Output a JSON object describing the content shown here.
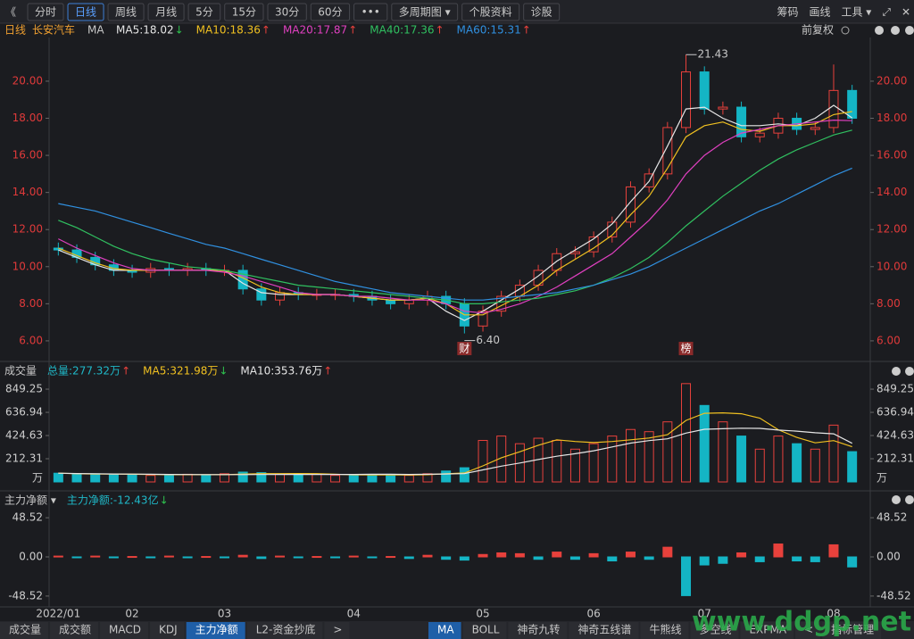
{
  "toolbar": {
    "left": [
      "《",
      "分时",
      "日线",
      "周线",
      "月线",
      "5分",
      "15分",
      "30分",
      "60分",
      "•••",
      "多周期图 ▾",
      "个股资料",
      "诊股"
    ],
    "active": 2,
    "right": [
      "筹码",
      "画线",
      "工具 ▾",
      "⤢",
      "✕"
    ]
  },
  "info": {
    "period": "日线",
    "stock": "长安汽车",
    "indicator": "MA",
    "adjust": "前复权"
  },
  "chart_data": [
    {
      "type": "candlestick",
      "categories": [
        "2022/01",
        null,
        null,
        null,
        "02",
        null,
        null,
        null,
        null,
        "03",
        null,
        null,
        null,
        null,
        null,
        null,
        "04",
        null,
        null,
        null,
        null,
        null,
        null,
        "05",
        null,
        null,
        null,
        null,
        null,
        "06",
        null,
        null,
        null,
        null,
        null,
        "07",
        null,
        null,
        null,
        null,
        null,
        null,
        "08",
        null
      ],
      "open": [
        11.0,
        10.9,
        10.5,
        10.1,
        9.8,
        9.7,
        9.9,
        9.8,
        9.9,
        9.8,
        9.8,
        8.8,
        8.2,
        8.6,
        8.5,
        8.5,
        8.5,
        8.4,
        8.2,
        8.0,
        8.2,
        8.4,
        8.0,
        6.8,
        7.6,
        8.4,
        9.0,
        9.8,
        10.7,
        10.8,
        11.6,
        12.4,
        14.3,
        15.0,
        17.5,
        20.5,
        18.5,
        18.6,
        17.0,
        17.2,
        18.0,
        17.4,
        17.5,
        19.5
      ],
      "close": [
        10.9,
        10.5,
        10.1,
        9.8,
        9.7,
        9.9,
        9.8,
        9.9,
        9.8,
        9.8,
        8.8,
        8.2,
        8.6,
        8.5,
        8.5,
        8.5,
        8.4,
        8.2,
        8.0,
        8.2,
        8.4,
        8.0,
        6.8,
        7.6,
        8.4,
        9.0,
        9.8,
        10.7,
        10.8,
        11.6,
        12.4,
        14.3,
        15.0,
        17.5,
        20.5,
        18.5,
        18.6,
        17.0,
        17.2,
        18.0,
        17.4,
        17.5,
        19.5,
        18.0
      ],
      "high": [
        11.3,
        11.2,
        10.8,
        10.4,
        10.1,
        10.2,
        10.2,
        10.2,
        10.2,
        10.1,
        10.1,
        9.1,
        8.9,
        8.9,
        8.8,
        8.8,
        8.8,
        8.7,
        8.5,
        8.5,
        8.7,
        8.7,
        8.3,
        7.9,
        8.7,
        9.3,
        10.1,
        11.0,
        11.1,
        11.9,
        12.7,
        14.6,
        15.3,
        17.8,
        21.43,
        20.8,
        18.9,
        18.9,
        17.5,
        18.3,
        18.3,
        17.8,
        20.9,
        19.8
      ],
      "low": [
        10.6,
        10.2,
        9.8,
        9.5,
        9.4,
        9.4,
        9.5,
        9.5,
        9.5,
        9.5,
        8.5,
        7.9,
        7.9,
        8.2,
        8.2,
        8.2,
        8.1,
        7.9,
        7.7,
        7.7,
        7.9,
        7.7,
        6.4,
        6.5,
        7.3,
        8.1,
        8.7,
        9.5,
        10.4,
        10.5,
        11.3,
        12.1,
        14.0,
        14.7,
        17.2,
        18.2,
        18.2,
        16.7,
        16.7,
        16.9,
        17.1,
        17.1,
        17.2,
        17.7
      ],
      "up_color": "#e8413c",
      "down_color": "#14b5c5",
      "series": [
        {
          "name": "MA5:18.02",
          "arrow": "↓",
          "arrow_color": "#2ec24e",
          "color": "#e6e6e6",
          "values": [
            10.9,
            10.5,
            10.1,
            9.8,
            9.8,
            9.8,
            9.8,
            9.8,
            9.8,
            9.8,
            9.1,
            8.6,
            8.5,
            8.5,
            8.5,
            8.5,
            8.4,
            8.3,
            8.2,
            8.2,
            8.3,
            7.6,
            7.1,
            7.6,
            8.2,
            8.8,
            9.5,
            10.3,
            10.9,
            11.5,
            12.3,
            13.5,
            14.6,
            16.5,
            18.5,
            18.6,
            18.0,
            17.6,
            17.6,
            17.7,
            17.6,
            18.0,
            18.7,
            18.02
          ]
        },
        {
          "name": "MA10:18.36",
          "arrow": "↑",
          "arrow_color": "#e8413c",
          "color": "#f0c020",
          "values": [
            11.0,
            10.6,
            10.2,
            9.9,
            9.8,
            9.8,
            9.8,
            9.8,
            9.8,
            9.8,
            9.4,
            8.9,
            8.6,
            8.5,
            8.5,
            8.5,
            8.4,
            8.3,
            8.2,
            8.2,
            8.3,
            8.0,
            7.4,
            7.4,
            7.9,
            8.4,
            9.0,
            9.8,
            10.4,
            11.0,
            11.7,
            12.8,
            13.8,
            15.3,
            17.0,
            17.6,
            17.8,
            17.4,
            17.3,
            17.6,
            17.6,
            17.7,
            18.2,
            18.36
          ]
        },
        {
          "name": "MA20:17.87",
          "arrow": "↑",
          "arrow_color": "#e8413c",
          "color": "#e040c0",
          "values": [
            11.5,
            11.0,
            10.6,
            10.2,
            9.9,
            9.8,
            9.8,
            9.8,
            9.8,
            9.7,
            9.5,
            9.2,
            8.9,
            8.6,
            8.5,
            8.5,
            8.4,
            8.4,
            8.3,
            8.2,
            8.2,
            8.0,
            7.6,
            7.5,
            7.7,
            8.0,
            8.4,
            8.9,
            9.5,
            10.1,
            10.7,
            11.6,
            12.5,
            13.6,
            15.0,
            16.0,
            16.7,
            17.2,
            17.4,
            17.6,
            17.7,
            17.8,
            17.9,
            17.87
          ]
        },
        {
          "name": "MA40:17.36",
          "arrow": "↑",
          "arrow_color": "#e8413c",
          "color": "#30c060",
          "values": [
            12.5,
            12.1,
            11.6,
            11.1,
            10.7,
            10.4,
            10.2,
            10.0,
            9.9,
            9.8,
            9.6,
            9.4,
            9.2,
            9.0,
            8.9,
            8.8,
            8.7,
            8.6,
            8.5,
            8.4,
            8.3,
            8.2,
            8.0,
            8.0,
            8.1,
            8.2,
            8.3,
            8.5,
            8.7,
            9.0,
            9.4,
            9.9,
            10.5,
            11.3,
            12.2,
            13.0,
            13.8,
            14.5,
            15.2,
            15.8,
            16.3,
            16.7,
            17.1,
            17.36
          ]
        },
        {
          "name": "MA60:15.31",
          "arrow": "↑",
          "arrow_color": "#e8413c",
          "color": "#3090e0",
          "values": [
            13.4,
            13.2,
            13.0,
            12.7,
            12.4,
            12.1,
            11.8,
            11.5,
            11.2,
            11.0,
            10.7,
            10.4,
            10.1,
            9.8,
            9.5,
            9.2,
            9.0,
            8.8,
            8.6,
            8.5,
            8.4,
            8.3,
            8.2,
            8.2,
            8.3,
            8.4,
            8.5,
            8.6,
            8.8,
            9.0,
            9.3,
            9.6,
            10.0,
            10.5,
            11.0,
            11.5,
            12.0,
            12.5,
            13.0,
            13.4,
            13.9,
            14.4,
            14.9,
            15.31
          ]
        }
      ],
      "annotations": [
        "21.43",
        "6.40"
      ],
      "events": [
        null,
        null,
        null,
        null,
        null,
        null,
        null,
        null,
        null,
        null,
        null,
        null,
        null,
        null,
        null,
        null,
        null,
        null,
        null,
        null,
        null,
        null,
        "财",
        null,
        null,
        null,
        null,
        null,
        null,
        null,
        null,
        null,
        null,
        null,
        "榜",
        null,
        null,
        null,
        null,
        null,
        null,
        null,
        null,
        null
      ],
      "ylim": [
        5.13,
        21.73
      ],
      "yticks": [
        {
          "value": 6,
          "label": "6.00"
        },
        {
          "value": 8,
          "label": "8.00"
        },
        {
          "value": 10,
          "label": "10.00"
        },
        {
          "value": 12,
          "label": "12.00"
        },
        {
          "value": 14,
          "label": "14.00"
        },
        {
          "value": 16,
          "label": "16.00"
        },
        {
          "value": 18,
          "label": "18.00"
        },
        {
          "value": 20,
          "label": "20.00"
        }
      ],
      "axis_color": "#e03a3a"
    },
    {
      "type": "bar",
      "title": "成交量",
      "summary": [
        {
          "name": "总量:277.32万",
          "arrow": "↑",
          "arrow_color": "#e8413c",
          "color": "#1fb8c8"
        }
      ],
      "values": [
        80,
        70,
        75,
        65,
        70,
        60,
        65,
        70,
        60,
        75,
        90,
        85,
        70,
        65,
        70,
        60,
        60,
        65,
        70,
        60,
        75,
        100,
        130,
        380,
        420,
        350,
        400,
        380,
        300,
        350,
        420,
        480,
        460,
        550,
        900,
        700,
        550,
        420,
        300,
        420,
        350,
        300,
        520,
        277.32
      ],
      "series": [
        {
          "name": "MA5:321.98万",
          "arrow": "↓",
          "arrow_color": "#2ec24e",
          "color": "#f0c020",
          "values": [
            80,
            75,
            73,
            72,
            70,
            68,
            66,
            66,
            66,
            66,
            72,
            76,
            76,
            77,
            76,
            70,
            65,
            64,
            65,
            63,
            66,
            74,
            82,
            147,
            221,
            276,
            336,
            386,
            370,
            360,
            370,
            386,
            402,
            432,
            563,
            628,
            632,
            624,
            584,
            478,
            408,
            358,
            378,
            321.98
          ]
        },
        {
          "name": "MA10:353.76万",
          "arrow": "↑",
          "arrow_color": "#e8413c",
          "color": "#e6e6e6",
          "values": [
            80,
            77,
            75,
            73,
            72,
            70,
            69,
            68,
            67,
            67,
            67,
            68,
            69,
            69,
            69,
            69,
            69,
            70,
            70,
            69,
            70,
            73,
            76,
            110,
            145,
            173,
            205,
            235,
            258,
            285,
            320,
            355,
            378,
            395,
            447,
            482,
            487,
            492,
            490,
            475,
            465,
            450,
            440,
            353.76
          ]
        }
      ],
      "unit": "万",
      "ylim": [
        0,
        915
      ],
      "yticks": [
        212.31,
        424.63,
        636.94,
        849.25
      ],
      "axis_color": "#cfcfcf"
    },
    {
      "type": "bar",
      "title": "主力净额 ▾",
      "summary": [
        {
          "name": "主力净额:-12.43亿",
          "arrow": "↓",
          "arrow_color": "#2ec24e",
          "color": "#1fb8c8"
        }
      ],
      "values": [
        1,
        -1,
        1,
        -1,
        0.5,
        -0.5,
        1,
        -1,
        0.5,
        -1,
        2,
        -2,
        1,
        -1,
        0.5,
        -0.5,
        1,
        -1,
        0.5,
        -2,
        2,
        -3,
        -4,
        3,
        5,
        4,
        -3,
        6,
        -3,
        4,
        -5,
        6,
        -3,
        12,
        -48,
        -10,
        -8,
        5,
        -6,
        16,
        -5,
        -6,
        15,
        -12.43
      ],
      "ylim": [
        -57.5,
        57.5
      ],
      "yticks": [
        -48.52,
        {
          "value": 0,
          "label": "0.00"
        },
        48.52
      ],
      "axis_color": "#cfcfcf"
    }
  ],
  "tabs": {
    "left": [
      "成交量",
      "成交额",
      "MACD",
      "KDJ",
      "主力净额",
      "L2-资金抄底",
      ">"
    ],
    "left_active": 4,
    "right": [
      "MA",
      "BOLL",
      "神奇九转",
      "神奇五线谱",
      "牛熊线",
      "多空线",
      "EXPMA",
      "<",
      "指标管理"
    ],
    "right_active": 0
  },
  "watermark": "www.ddgp.net"
}
